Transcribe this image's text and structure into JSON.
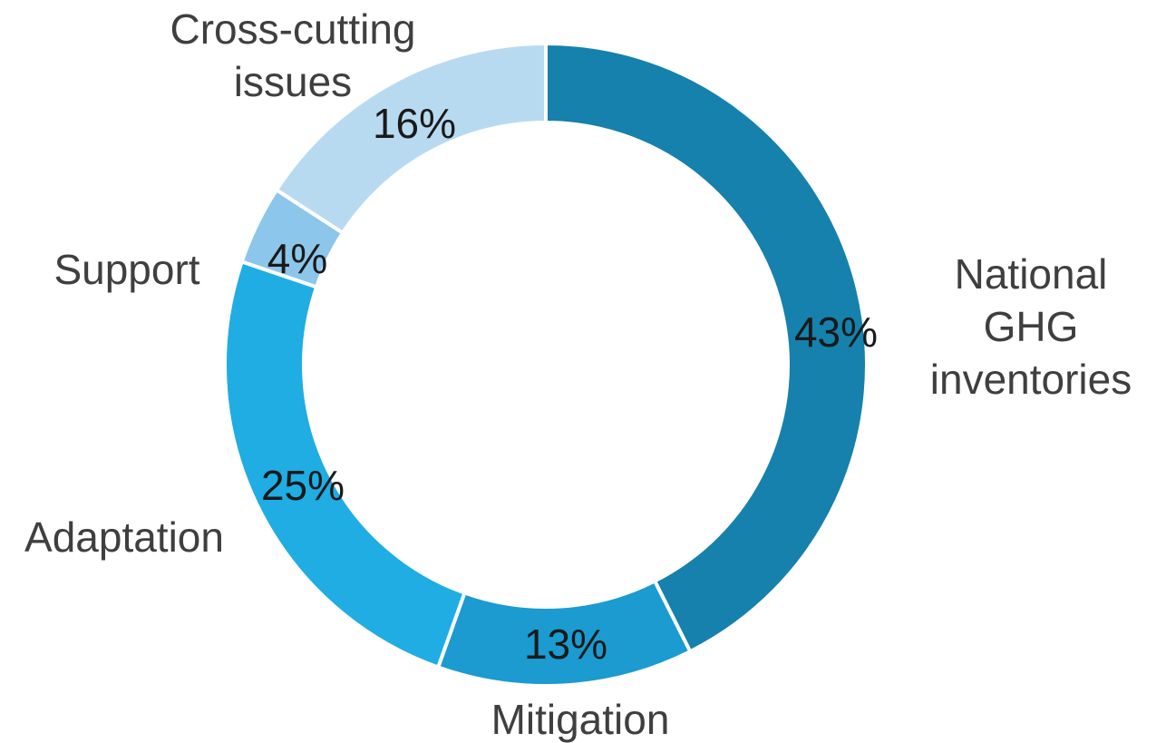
{
  "chart_data": {
    "type": "pie",
    "variant": "donut",
    "categories": [
      "National GHG inventories",
      "Mitigation",
      "Adaptation",
      "Support",
      "Cross-cutting issues"
    ],
    "values": [
      43,
      13,
      25,
      4,
      16
    ],
    "value_labels": [
      "43%",
      "13%",
      "25%",
      "4%",
      "16%"
    ],
    "category_labels": [
      [
        "National",
        "GHG",
        "inventories"
      ],
      [
        "Mitigation"
      ],
      [
        "Adaptation"
      ],
      [
        "Support"
      ],
      [
        "Cross-cutting",
        "issues"
      ]
    ],
    "colors": [
      "#1581ac",
      "#1b9bd0",
      "#1fade3",
      "#8cc6ea",
      "#b8daf1"
    ],
    "start_angle": "12 o'clock",
    "direction": "clockwise",
    "legend": "none"
  }
}
